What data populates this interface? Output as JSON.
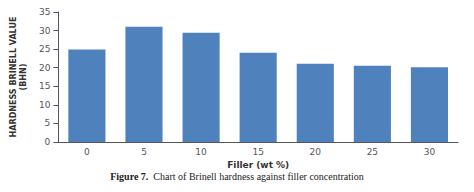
{
  "chart_data": {
    "type": "bar",
    "title": "Figure 7.",
    "subtitle": "Chart of Brinell hardness against filler concentration",
    "xlabel": "Filler (wt %)",
    "ylabel": "HARDNESS BRINELL VALUE\n(BHN)",
    "categories": [
      "0",
      "5",
      "10",
      "15",
      "20",
      "25",
      "30"
    ],
    "values": [
      24.9,
      31.0,
      29.4,
      24.0,
      21.1,
      20.5,
      20.1
    ],
    "color": "#4f81bd",
    "ylim": [
      0,
      35
    ],
    "yticks": [
      0,
      5,
      10,
      15,
      20,
      25,
      30,
      35
    ],
    "grid": false
  }
}
